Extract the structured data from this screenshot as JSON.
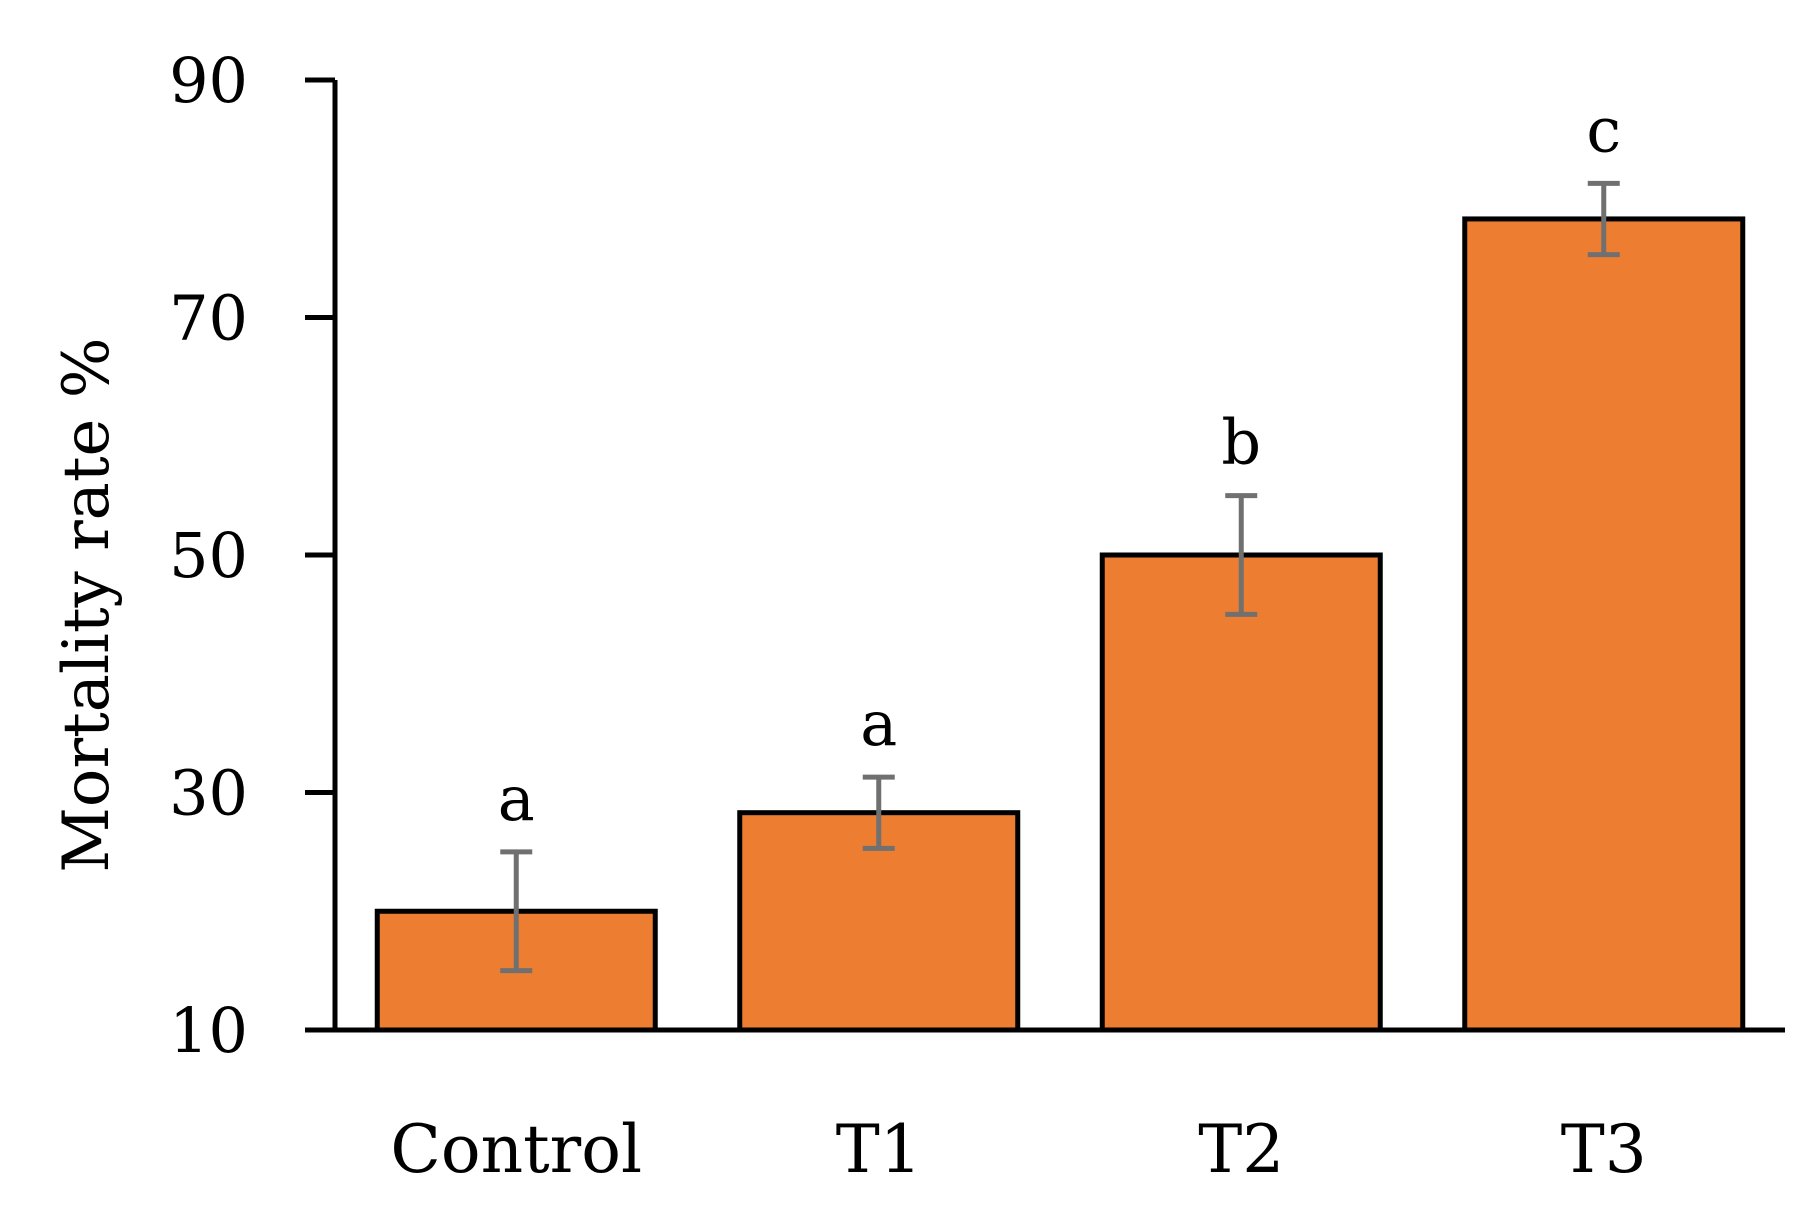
{
  "chart_data": {
    "type": "bar",
    "title": "",
    "xlabel": "",
    "ylabel": "Mortality rate %",
    "ylim": [
      10,
      90
    ],
    "yticks": [
      10,
      30,
      50,
      70,
      90
    ],
    "categories": [
      "Control",
      "T1",
      "T2",
      "T3"
    ],
    "values": [
      20,
      28.3,
      50,
      78.3
    ],
    "errors": [
      5,
      3,
      5,
      3
    ],
    "significance": [
      "a",
      "a",
      "b",
      "c"
    ],
    "grid": false,
    "colors": {
      "bar_fill": "#ED7D31",
      "bar_stroke": "#000000",
      "error_bar": "#707070",
      "axis": "#000000"
    }
  }
}
